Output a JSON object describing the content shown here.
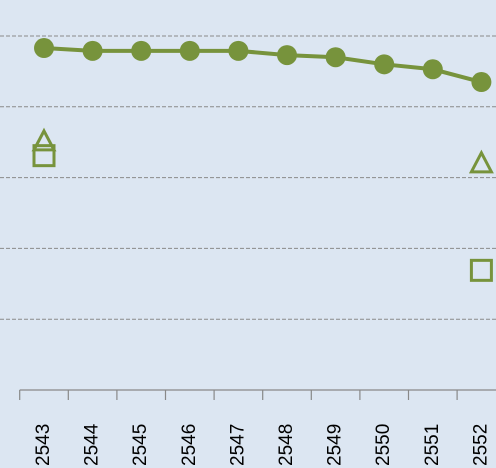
{
  "chart_data": {
    "type": "line",
    "categories": [
      "2543",
      "2544",
      "2545",
      "2546",
      "2547",
      "2548",
      "2549",
      "2550",
      "2551",
      "2552"
    ],
    "series": [
      {
        "color": "#77933c",
        "marker": "circle",
        "values": [
          4.83,
          4.79,
          4.79,
          4.79,
          4.79,
          4.73,
          4.7,
          4.6,
          4.53,
          4.35
        ]
      },
      {
        "color": "#77933c",
        "marker": "triangle",
        "values": [
          3.49,
          null,
          null,
          null,
          null,
          null,
          null,
          null,
          null,
          3.18
        ]
      },
      {
        "color": "#77933c",
        "marker": "square",
        "values": [
          3.31,
          null,
          null,
          null,
          null,
          null,
          null,
          null,
          null,
          1.69
        ]
      }
    ],
    "ylim": [
      0,
      5.5
    ],
    "yticks": [
      0,
      1,
      2,
      3,
      4,
      5
    ],
    "grid": true
  }
}
